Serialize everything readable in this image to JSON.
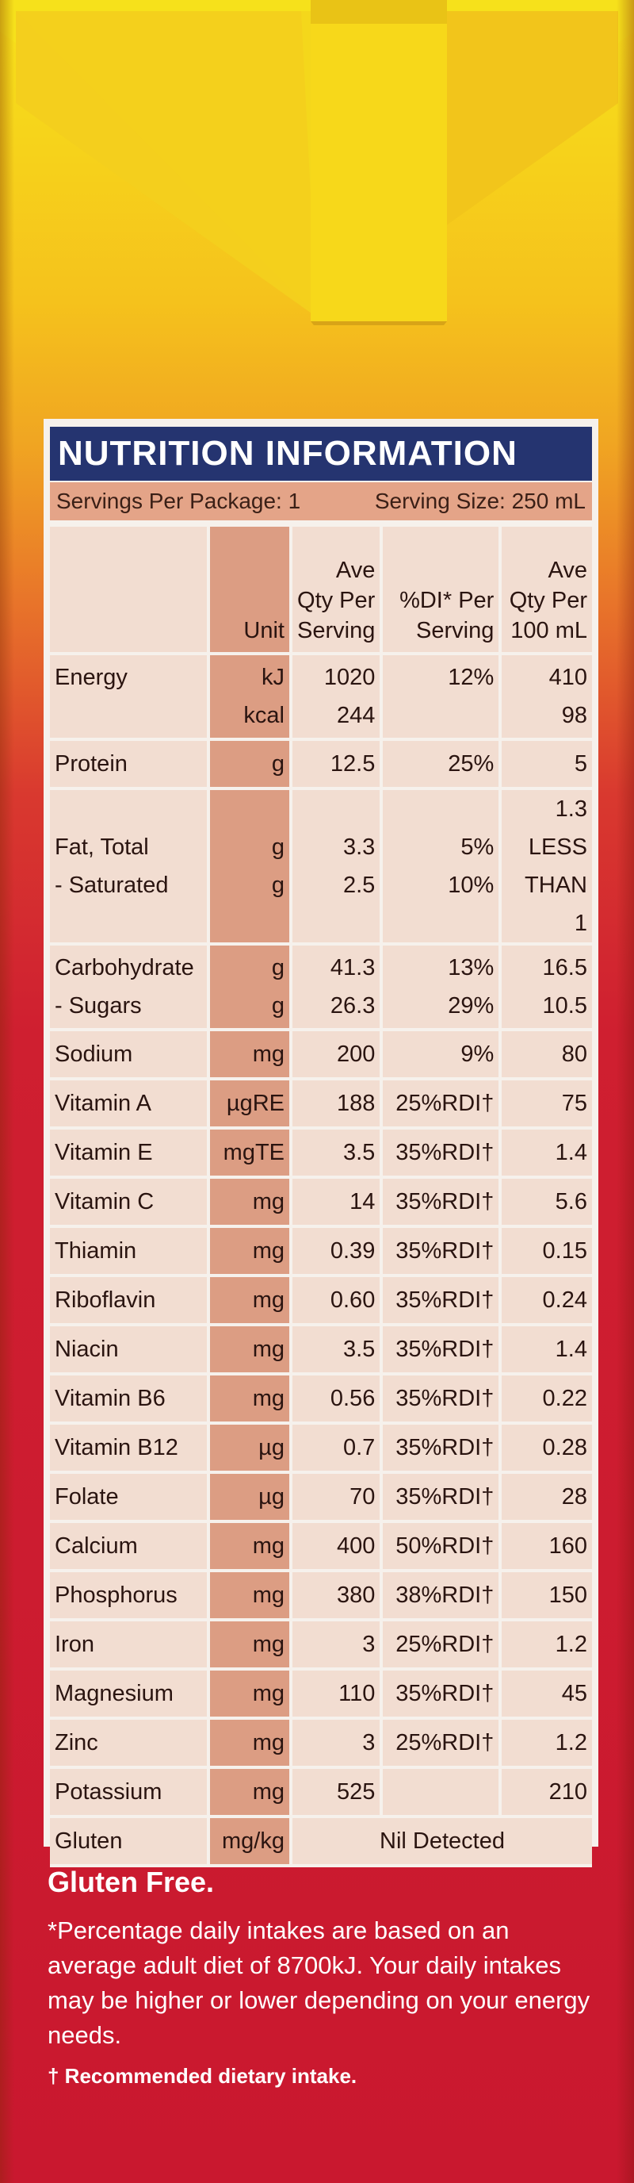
{
  "panel_title": "NUTRITION INFORMATION",
  "servings_per_package": "Servings Per Package: 1",
  "serving_size": "Serving Size: 250 mL",
  "header": {
    "unit": "Unit",
    "per_serving": [
      "Ave",
      "Qty Per",
      "Serving"
    ],
    "di": [
      "%DI* Per",
      "Serving"
    ],
    "per_100": [
      "Ave",
      "Qty Per",
      "100 mL"
    ]
  },
  "rows": [
    {
      "name": [
        "Energy",
        ""
      ],
      "unit": [
        "kJ",
        "kcal"
      ],
      "serving": [
        "1020",
        "244"
      ],
      "di": [
        "12%",
        ""
      ],
      "per100": [
        "410",
        "98"
      ]
    },
    {
      "name": [
        "Protein"
      ],
      "unit": [
        "g"
      ],
      "serving": [
        "12.5"
      ],
      "di": [
        "25%"
      ],
      "per100": [
        "5"
      ]
    },
    {
      "name": [
        "Fat, Total",
        "- Saturated"
      ],
      "unit": [
        "g",
        "g"
      ],
      "serving": [
        "3.3",
        "2.5"
      ],
      "di": [
        "5%",
        "10%"
      ],
      "per100": [
        "1.3",
        "LESS THAN 1"
      ]
    },
    {
      "name": [
        "Carbohydrate",
        "- Sugars"
      ],
      "unit": [
        "g",
        "g"
      ],
      "serving": [
        "41.3",
        "26.3"
      ],
      "di": [
        "13%",
        "29%"
      ],
      "per100": [
        "16.5",
        "10.5"
      ]
    },
    {
      "name": [
        "Sodium"
      ],
      "unit": [
        "mg"
      ],
      "serving": [
        "200"
      ],
      "di": [
        "9%"
      ],
      "per100": [
        "80"
      ]
    },
    {
      "name": [
        "Vitamin A"
      ],
      "unit": [
        "µgRE"
      ],
      "serving": [
        "188"
      ],
      "di": [
        "25%RDI†"
      ],
      "per100": [
        "75"
      ]
    },
    {
      "name": [
        "Vitamin E"
      ],
      "unit": [
        "mgTE"
      ],
      "serving": [
        "3.5"
      ],
      "di": [
        "35%RDI†"
      ],
      "per100": [
        "1.4"
      ]
    },
    {
      "name": [
        "Vitamin C"
      ],
      "unit": [
        "mg"
      ],
      "serving": [
        "14"
      ],
      "di": [
        "35%RDI†"
      ],
      "per100": [
        "5.6"
      ]
    },
    {
      "name": [
        "Thiamin"
      ],
      "unit": [
        "mg"
      ],
      "serving": [
        "0.39"
      ],
      "di": [
        "35%RDI†"
      ],
      "per100": [
        "0.15"
      ]
    },
    {
      "name": [
        "Riboflavin"
      ],
      "unit": [
        "mg"
      ],
      "serving": [
        "0.60"
      ],
      "di": [
        "35%RDI†"
      ],
      "per100": [
        "0.24"
      ]
    },
    {
      "name": [
        "Niacin"
      ],
      "unit": [
        "mg"
      ],
      "serving": [
        "3.5"
      ],
      "di": [
        "35%RDI†"
      ],
      "per100": [
        "1.4"
      ]
    },
    {
      "name": [
        "Vitamin B6"
      ],
      "unit": [
        "mg"
      ],
      "serving": [
        "0.56"
      ],
      "di": [
        "35%RDI†"
      ],
      "per100": [
        "0.22"
      ]
    },
    {
      "name": [
        "Vitamin B12"
      ],
      "unit": [
        "µg"
      ],
      "serving": [
        "0.7"
      ],
      "di": [
        "35%RDI†"
      ],
      "per100": [
        "0.28"
      ]
    },
    {
      "name": [
        "Folate"
      ],
      "unit": [
        "µg"
      ],
      "serving": [
        "70"
      ],
      "di": [
        "35%RDI†"
      ],
      "per100": [
        "28"
      ]
    },
    {
      "name": [
        "Calcium"
      ],
      "unit": [
        "mg"
      ],
      "serving": [
        "400"
      ],
      "di": [
        "50%RDI†"
      ],
      "per100": [
        "160"
      ]
    },
    {
      "name": [
        "Phosphorus"
      ],
      "unit": [
        "mg"
      ],
      "serving": [
        "380"
      ],
      "di": [
        "38%RDI†"
      ],
      "per100": [
        "150"
      ]
    },
    {
      "name": [
        "Iron"
      ],
      "unit": [
        "mg"
      ],
      "serving": [
        "3"
      ],
      "di": [
        "25%RDI†"
      ],
      "per100": [
        "1.2"
      ]
    },
    {
      "name": [
        "Magnesium"
      ],
      "unit": [
        "mg"
      ],
      "serving": [
        "110"
      ],
      "di": [
        "35%RDI†"
      ],
      "per100": [
        "45"
      ]
    },
    {
      "name": [
        "Zinc"
      ],
      "unit": [
        "mg"
      ],
      "serving": [
        "3"
      ],
      "di": [
        "25%RDI†"
      ],
      "per100": [
        "1.2"
      ]
    },
    {
      "name": [
        "Potassium"
      ],
      "unit": [
        "mg"
      ],
      "serving": [
        "525"
      ],
      "di": [
        ""
      ],
      "per100": [
        "210"
      ]
    }
  ],
  "gluten_row": {
    "name": "Gluten",
    "unit": "mg/kg",
    "value": "Nil Detected"
  },
  "gluten_free": "Gluten Free.",
  "footnote": "*Percentage daily intakes are based on an average adult diet of 8700kJ. Your daily intakes may be higher or lower depending on your energy needs.",
  "rdi_note": "† Recommended dietary intake.",
  "colors": {
    "title_bar": "#253470",
    "unit_col": "#dc9d83",
    "cell": "#f2ddd1"
  }
}
